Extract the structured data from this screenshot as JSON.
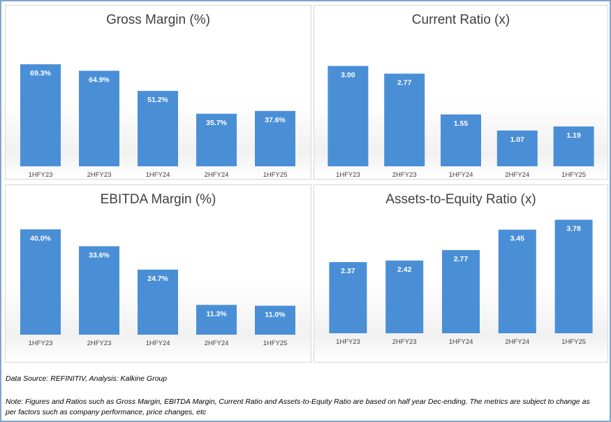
{
  "charts": [
    {
      "id": "gross-margin",
      "chart_data": {
        "type": "bar",
        "title": "Gross Margin (%)",
        "categories": [
          "1HFY23",
          "2HFY23",
          "1HFY24",
          "2HFY24",
          "1HFY25"
        ],
        "values": [
          69.3,
          64.9,
          51.2,
          35.7,
          37.6
        ],
        "labels": [
          "69.3%",
          "64.9%",
          "51.2%",
          "35.7%",
          "37.6%"
        ],
        "ylim": [
          0,
          75
        ],
        "grid": false,
        "legend": "none",
        "bar_color": "#4a8fd6"
      }
    },
    {
      "id": "current-ratio",
      "chart_data": {
        "type": "bar",
        "title": "Current Ratio (x)",
        "categories": [
          "1HFY23",
          "2HFY23",
          "1HFY24",
          "2HFY24",
          "1HFY25"
        ],
        "values": [
          3.0,
          2.77,
          1.55,
          1.07,
          1.19
        ],
        "labels": [
          "3.00",
          "2.77",
          "1.55",
          "1.07",
          "1.19"
        ],
        "ylim": [
          0,
          3.3
        ],
        "grid": false,
        "legend": "none",
        "bar_color": "#4a8fd6"
      }
    },
    {
      "id": "ebitda-margin",
      "chart_data": {
        "type": "bar",
        "title": "EBITDA Margin (%)",
        "categories": [
          "1HFY23",
          "2HFY23",
          "1HFY24",
          "2HFY24",
          "1HFY25"
        ],
        "values": [
          40.0,
          33.6,
          24.7,
          11.3,
          11.0
        ],
        "labels": [
          "40.0%",
          "33.6%",
          "24.7%",
          "11.3%",
          "11.0%"
        ],
        "ylim": [
          0,
          43
        ],
        "grid": false,
        "legend": "none",
        "bar_color": "#4a8fd6"
      }
    },
    {
      "id": "assets-to-equity",
      "chart_data": {
        "type": "bar",
        "title": "Assets-to-Equity Ratio (x)",
        "categories": [
          "1HFY23",
          "2HFY23",
          "1HFY24",
          "2HFY24",
          "1HFY25"
        ],
        "values": [
          2.37,
          2.42,
          2.77,
          3.45,
          3.78
        ],
        "labels": [
          "2.37",
          "2.42",
          "2.77",
          "3.45",
          "3.78"
        ],
        "ylim": [
          0,
          4.0
        ],
        "grid": false,
        "legend": "none",
        "bar_color": "#4a8fd6"
      }
    }
  ],
  "footer": {
    "source": "Data Source: REFINITIV, Analysis: Kalkine Group",
    "note": "Note: Figures and Ratios such as Gross Margin, EBITDA Margin, Current Ratio and Assets-to-Equity Ratio are based on half year Dec-ending. The metrics are subject to change as per factors such as company performance, price changes, etc"
  }
}
